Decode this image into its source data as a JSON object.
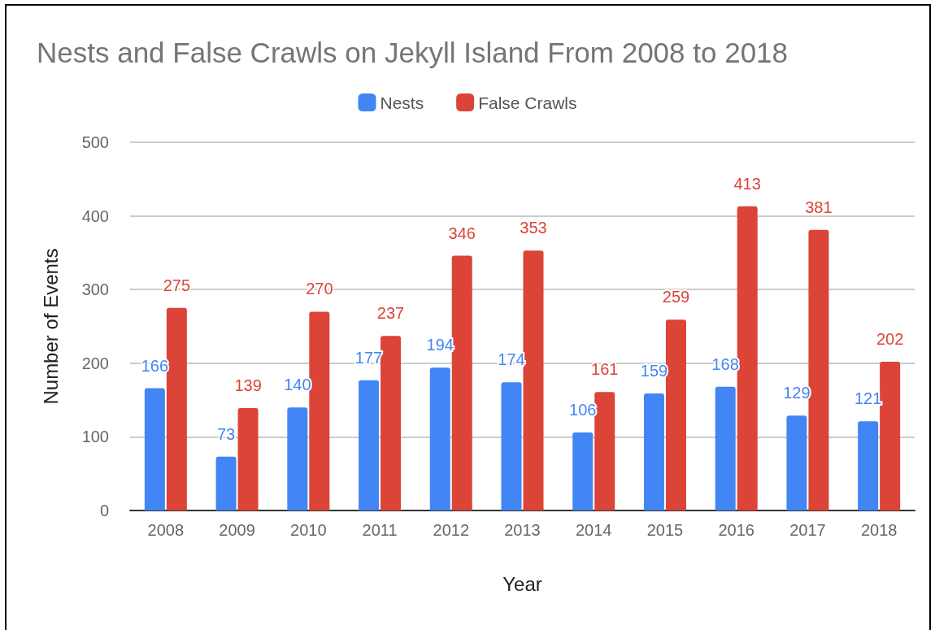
{
  "chart_data": {
    "type": "bar",
    "title": "Nests and False Crawls on Jekyll Island From 2008 to 2018",
    "xlabel": "Year",
    "ylabel": "Number of Events",
    "categories": [
      "2008",
      "2009",
      "2010",
      "2011",
      "2012",
      "2013",
      "2014",
      "2015",
      "2016",
      "2017",
      "2018"
    ],
    "series": [
      {
        "name": "Nests",
        "color": "#4285f4",
        "values": [
          166,
          73,
          140,
          177,
          194,
          174,
          106,
          159,
          168,
          129,
          121
        ]
      },
      {
        "name": "False Crawls",
        "color": "#db4437",
        "values": [
          275,
          139,
          270,
          237,
          346,
          353,
          161,
          259,
          413,
          381,
          202
        ]
      }
    ],
    "ylim": [
      0,
      500
    ],
    "yticks": [
      0,
      100,
      200,
      300,
      400,
      500
    ],
    "grid": "y",
    "legend": "top",
    "data_labels": true
  }
}
